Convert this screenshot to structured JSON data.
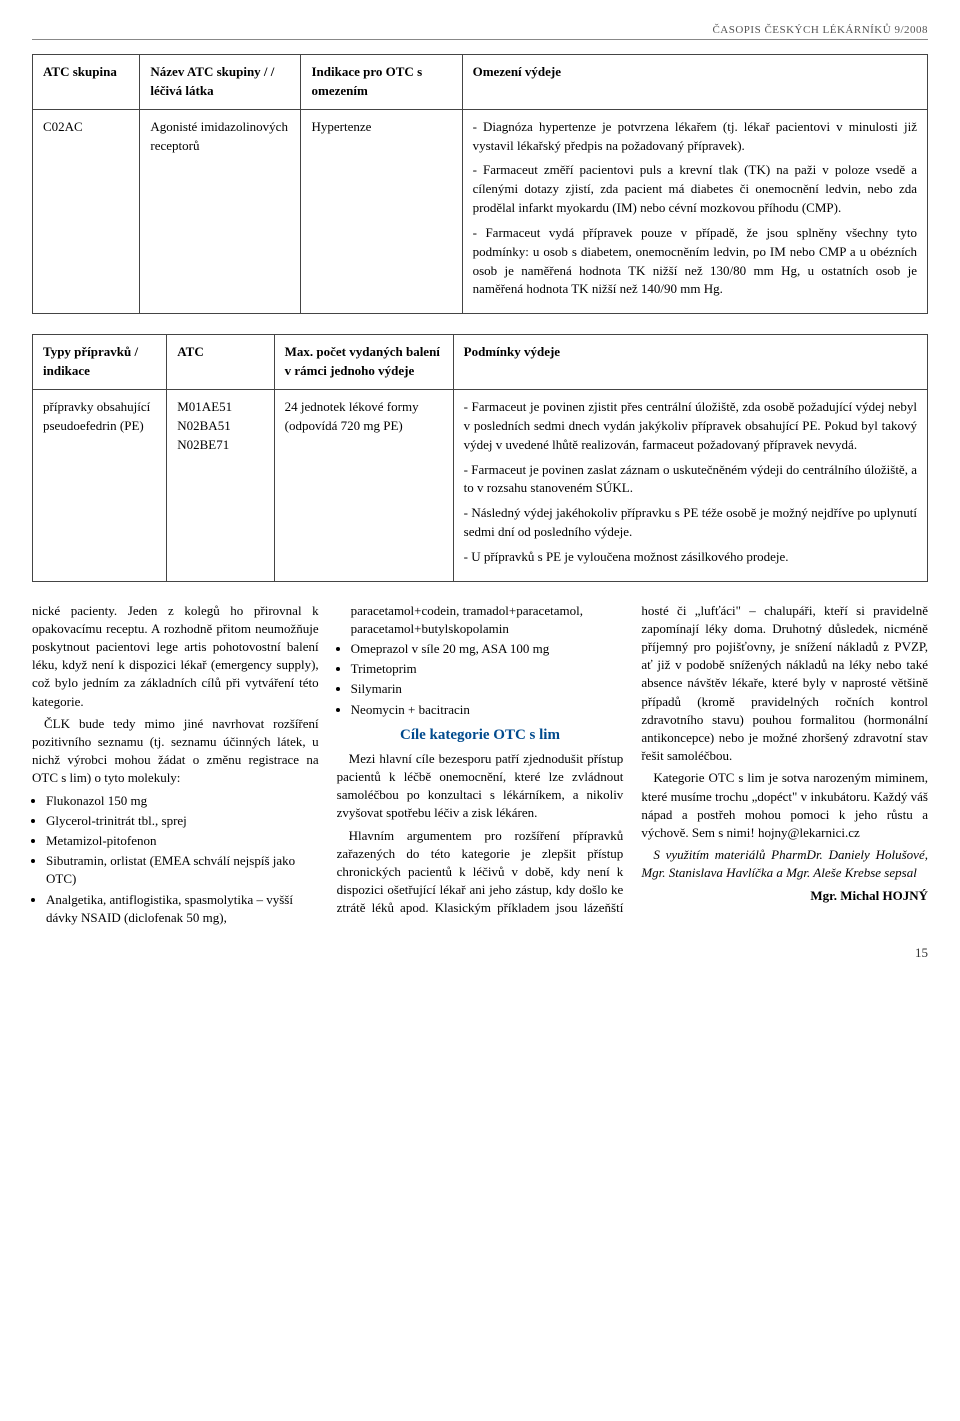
{
  "header": "ČASOPIS ČESKÝCH LÉKÁRNÍKŮ 9/2008",
  "table1": {
    "headers": {
      "c1": "ATC skupina",
      "c2": "Název ATC skupiny / / léčivá látka",
      "c3": "Indikace pro OTC s omezením",
      "c4": "Omezení výdeje"
    },
    "row": {
      "c1": "C02AC",
      "c2": "Agonisté imidazolinových receptorů",
      "c3": "Hypertenze",
      "p1": "- Diagnóza hypertenze je potvrzena lékařem (tj. lékař pacientovi v minulosti již vystavil lékařský předpis na požadovaný přípravek).",
      "p2": "- Farmaceut změří pacientovi puls a krevní tlak (TK) na paži v poloze vsedě a cílenými dotazy zjistí, zda pacient má diabetes či onemocnění ledvin, nebo zda prodělal infarkt myokardu (IM) nebo cévní mozkovou příhodu (CMP).",
      "p3": "- Farmaceut vydá přípravek pouze v případě, že jsou splněny všechny tyto podmínky: u osob s diabetem, onemocněním ledvin, po IM nebo CMP a u obézních osob je naměřená hodnota TK nižší než 130/80 mm Hg, u ostatních osob je naměřená hodnota TK nižší než 140/90 mm Hg."
    }
  },
  "table2": {
    "headers": {
      "c1": "Typy přípravků / indikace",
      "c2": "ATC",
      "c3": "Max. počet vydaných balení v rámci jednoho výdeje",
      "c4": "Podmínky výdeje"
    },
    "row": {
      "c1": "přípravky obsahující pseudoefedrin (PE)",
      "c2a": "M01AE51",
      "c2b": "N02BA51",
      "c2c": "N02BE71",
      "c3": "24 jednotek lékové formy (odpovídá 720 mg PE)",
      "p1": "- Farmaceut je povinen zjistit přes centrální úložiště, zda osobě požadující výdej nebyl v posledních sedmi dnech vydán jakýkoliv přípravek obsahující PE. Pokud byl takový výdej v uvedené lhůtě realizován, farmaceut požadovaný přípravek nevydá.",
      "p2": "- Farmaceut je povinen zaslat záznam o uskutečněném výdeji do centrálního úložiště, a to v rozsahu stanoveném SÚKL.",
      "p3": "- Následný výdej jakéhokoliv přípravku s PE téže osobě je možný nejdříve po uplynutí sedmi dní od posledního výdeje.",
      "p4": "- U přípravků s PE je vyloučena možnost zásilkového prodeje."
    }
  },
  "body": {
    "p1": "nické pacienty. Jeden z kolegů ho přirovnal k opakovacímu receptu. A rozhodně přitom neumožňuje poskytnout pacientovi lege artis pohotovostní balení léku, když není k dispozici lékař (emergency supply), což bylo jedním za základních cílů při vytváření této kategorie.",
    "p2": "ČLK bude tedy mimo jiné navrhovat rozšíření pozitivního seznamu (tj. seznamu účinných látek, u nichž výrobci mohou žádat o změnu registrace na OTC s lim) o tyto molekuly:",
    "b1": "Flukonazol 150 mg",
    "b2": "Glycerol-trinitrát tbl., sprej",
    "b3": "Metamizol-pitofenon",
    "b4": "Sibutramin, orlistat (EMEA schválí nejspíš jako OTC)",
    "b5": "Analgetika, antiflogistika, spasmolytika – vyšší dávky NSAID (diclofenak 50 mg), paracetamol+codein, tramadol+paracetamol, paracetamol+butylskopolamin",
    "b6": "Omeprazol v síle 20 mg, ASA 100 mg",
    "b7": "Trimetoprim",
    "b8": "Silymarin",
    "b9": "Neomycin + bacitracin",
    "sectionTitle": "Cíle kategorie OTC s lim",
    "p3": "Mezi hlavní cíle bezesporu patří zjednodušit přístup pacientů k léčbě onemocnění, které lze zvládnout samoléčbou po konzultaci s lékárníkem, a nikoliv zvyšovat spotřebu léčiv a zisk lékáren.",
    "p4": "Hlavním argumentem pro rozšíření přípravků zařazených do této kategorie je zlepšit přístup chronických pacientů k léčivů v době, kdy není k dispozici ošetřující lékař ani jeho zástup, kdy došlo ke ztrátě léků apod. Klasickým příkladem jsou lázeňští hosté či „lufťáci\" – chalupáři, kteří si pravidelně zapomínají léky doma. Druhotný důsledek, nicméně příjemný pro pojišťovny, je snížení nákladů z PVZP, ať již v podobě snížených nákladů na léky nebo také absence návštěv lékaře, které byly v naprosté většině případů (kromě pravidelných ročních kontrol zdravotního stavu) pouhou formalitou (hormonální antikoncepce) nebo je možné zhoršený zdravotní stav řešit samoléčbou.",
    "p5": "Kategorie OTC s lim je sotva narozeným miminem, které musíme trochu „dopéct\" v inkubátoru. Každý váš nápad a postřeh mohou pomoci k jeho růstu a výchově. Sem s nimi! hojny@lekarnici.cz",
    "credits1": "S využitím materiálů PharmDr. Daniely Holušové, Mgr. Stanislava Havlíčka a Mgr. Aleše Krebse sepsal",
    "credits2": "Mgr. Michal HOJNÝ"
  },
  "pageNum": "15"
}
